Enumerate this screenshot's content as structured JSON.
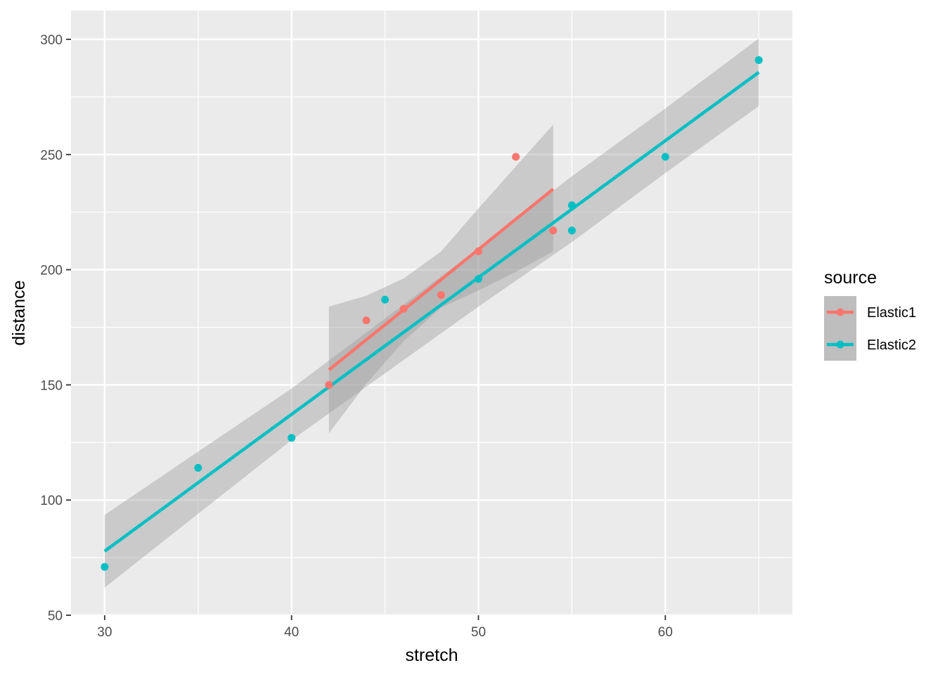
{
  "chart_data": {
    "type": "scatter",
    "title": "",
    "xlabel": "stretch",
    "ylabel": "distance",
    "xlim": [
      28.2,
      66.8
    ],
    "ylim": [
      50,
      312.5
    ],
    "x_ticks": [
      30,
      40,
      50,
      60
    ],
    "y_ticks": [
      50,
      100,
      150,
      200,
      250,
      300
    ],
    "x_tick_labels": [
      "30",
      "40",
      "50",
      "60"
    ],
    "y_tick_labels": [
      "50",
      "100",
      "150",
      "200",
      "250",
      "300"
    ],
    "grid": true,
    "legend": {
      "title": "source",
      "position": "right"
    },
    "series": [
      {
        "name": "Elastic1",
        "color": "#F8766D",
        "points": [
          {
            "x": 42,
            "y": 150
          },
          {
            "x": 44,
            "y": 178
          },
          {
            "x": 46,
            "y": 183
          },
          {
            "x": 48,
            "y": 189
          },
          {
            "x": 50,
            "y": 208
          },
          {
            "x": 52,
            "y": 249
          },
          {
            "x": 54,
            "y": 217
          }
        ],
        "fit": {
          "x": [
            42,
            44,
            46,
            48,
            50,
            52,
            54
          ],
          "y": [
            156.5,
            169.6,
            182.6,
            195.7,
            208.8,
            221.9,
            235.0
          ],
          "ymin": [
            129.0,
            150.5,
            169.0,
            183.5,
            191.0,
            199.0,
            208.0
          ],
          "ymax": [
            184.0,
            188.7,
            196.2,
            207.9,
            226.6,
            244.8,
            263.0
          ]
        }
      },
      {
        "name": "Elastic2",
        "color": "#00BFC4",
        "points": [
          {
            "x": 30,
            "y": 71
          },
          {
            "x": 35,
            "y": 114
          },
          {
            "x": 40,
            "y": 127
          },
          {
            "x": 45,
            "y": 187
          },
          {
            "x": 50,
            "y": 196
          },
          {
            "x": 55,
            "y": 217
          },
          {
            "x": 55,
            "y": 228
          },
          {
            "x": 60,
            "y": 249
          },
          {
            "x": 65,
            "y": 291
          }
        ],
        "fit": {
          "x": [
            30,
            35,
            40,
            45,
            50,
            55,
            60,
            65
          ],
          "y": [
            77.8,
            107.5,
            137.2,
            166.9,
            196.6,
            226.3,
            256.0,
            285.7
          ],
          "ymin": [
            62.0,
            94.0,
            126.0,
            155.0,
            184.0,
            212.0,
            242.0,
            271.0
          ],
          "ymax": [
            93.6,
            121.0,
            148.4,
            178.8,
            209.2,
            240.6,
            270.0,
            300.4
          ]
        }
      }
    ]
  }
}
